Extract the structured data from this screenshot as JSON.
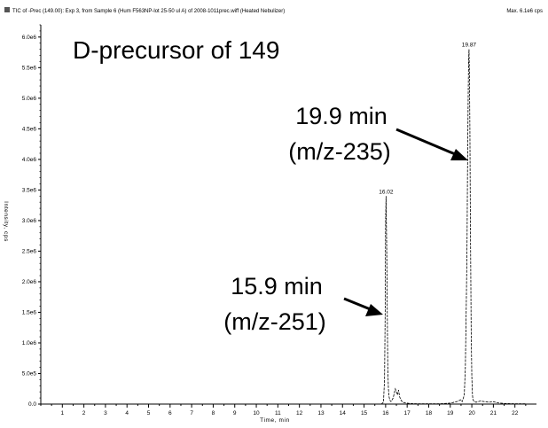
{
  "header": {
    "left_text": "TIC of -Prec (149.00): Exp 3, from Sample 6 (Hum F563NP-lot 25-50 ul A) of 2008-1011prec.wiff (Heated Nebulizer)",
    "right_text": "Max. 6.1e6 cps"
  },
  "annotations": {
    "title": "D-precursor of 149",
    "peak2_line1": "19.9 min",
    "peak2_line2": "(m/z-235)",
    "peak1_line1": "15.9 min",
    "peak1_line2": "(m/z-251)"
  },
  "colors": {
    "trace": "#000000",
    "axis": "#000000",
    "background": "#ffffff"
  },
  "chart_data": {
    "type": "line",
    "title": "",
    "xlabel": "Time, min",
    "ylabel": "Intensity, cps",
    "xlim": [
      0,
      23
    ],
    "ylim": [
      0,
      6200000
    ],
    "x_ticks": [
      1,
      2,
      3,
      4,
      5,
      6,
      7,
      8,
      9,
      10,
      11,
      12,
      13,
      14,
      15,
      16,
      17,
      18,
      19,
      20,
      21,
      22
    ],
    "x_tick_labels": [
      "1",
      "2",
      "3",
      "4",
      "5",
      "6",
      "7",
      "8",
      "9",
      "10",
      "11",
      "12",
      "13",
      "14",
      "15",
      "16",
      "17",
      "18",
      "19",
      "20",
      "21",
      "22"
    ],
    "y_ticks": [
      0,
      500000,
      1000000,
      1500000,
      2000000,
      2500000,
      3000000,
      3500000,
      4000000,
      4500000,
      5000000,
      5500000,
      6000000
    ],
    "y_tick_labels": [
      "0.0",
      "5.0e5",
      "1.0e6",
      "1.5e6",
      "2.0e6",
      "2.5e6",
      "3.0e6",
      "3.5e6",
      "4.0e6",
      "4.5e6",
      "5.0e6",
      "5.5e6",
      "6.0e6"
    ],
    "peak_labels": [
      {
        "x": 16.02,
        "y": 3400000,
        "text": "16.02"
      },
      {
        "x": 19.87,
        "y": 5800000,
        "text": "19.87"
      }
    ],
    "series": [
      {
        "x": [
          15.8,
          15.9,
          15.95,
          15.98,
          16.0,
          16.02,
          16.05,
          16.08,
          16.1,
          16.13,
          16.16,
          16.2,
          16.25,
          16.35,
          16.45,
          16.55,
          16.6,
          16.65,
          16.72,
          16.8,
          16.9,
          17.1,
          17.5,
          18.5,
          19.0,
          19.3,
          19.5,
          19.55,
          19.6,
          19.65,
          19.7,
          19.75,
          19.78,
          19.8,
          19.83,
          19.85,
          19.87,
          19.89,
          19.91,
          19.93,
          19.95,
          19.97,
          20.0,
          20.03,
          20.05,
          20.1,
          20.2,
          20.4,
          20.6,
          20.8,
          21.0,
          21.2,
          21.5,
          22.0,
          22.5
        ],
        "y": [
          0,
          30000,
          400000,
          1500000,
          3000000,
          3400000,
          2600000,
          1400000,
          600000,
          250000,
          120000,
          60000,
          40000,
          100000,
          250000,
          150000,
          230000,
          120000,
          60000,
          30000,
          20000,
          10000,
          5000,
          5000,
          15000,
          40000,
          70000,
          40000,
          90000,
          150000,
          600000,
          1800000,
          2700000,
          3800000,
          5000000,
          5600000,
          5800000,
          5400000,
          4500000,
          3200000,
          2200000,
          1200000,
          450000,
          150000,
          80000,
          40000,
          30000,
          50000,
          40000,
          30000,
          40000,
          20000,
          10000,
          5000,
          5000
        ]
      }
    ]
  }
}
